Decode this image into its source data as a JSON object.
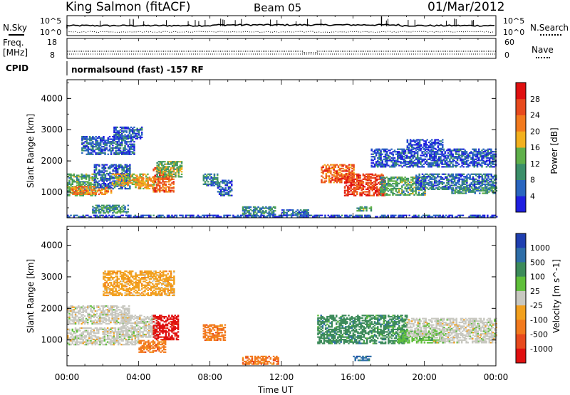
{
  "header": {
    "station": "King Salmon (fitACF)",
    "beam": "Beam 05",
    "date": "01/Mar/2012"
  },
  "strip_panels": {
    "nsky": {
      "label": "N.Sky",
      "ticks": [
        "10^5",
        "10^0"
      ]
    },
    "nsearch": {
      "label": "N.Search",
      "ticks": [
        "10^5",
        "10^0"
      ]
    },
    "freq": {
      "label_line1": "Freq.",
      "label_line2": "[MHz]",
      "ticks": [
        "18",
        "8"
      ]
    },
    "nave": {
      "label": "Nave",
      "ticks": [
        "60",
        "0"
      ]
    },
    "cpid": {
      "label": "CPID",
      "value": "normalsound (fast) -157 RF"
    }
  },
  "chart_data": [
    {
      "type": "heatmap",
      "name": "power-panel",
      "xlabel": "",
      "ylabel": "Slant Range [km]",
      "y_ticks": [
        "1000",
        "2000",
        "3000",
        "4000"
      ],
      "ylim": [
        180,
        4600
      ],
      "xlim": [
        0,
        24
      ],
      "colorbar": {
        "label": "Power [dB]",
        "ticks": [
          "4",
          "8",
          "12",
          "16",
          "20",
          "24",
          "28"
        ],
        "colors": [
          "#1f1fe0",
          "#2a66c0",
          "#3b8f6a",
          "#5fb04a",
          "#f2b01e",
          "#f27a1e",
          "#e84a1e",
          "#e01010"
        ],
        "range": [
          0,
          32
        ]
      },
      "regions": [
        {
          "t": [
            0.0,
            1.6
          ],
          "r": [
            900,
            1600
          ],
          "v": 12
        },
        {
          "t": [
            0.2,
            2.5
          ],
          "r": [
            950,
            1200
          ],
          "v": 22
        },
        {
          "t": [
            1.5,
            3.5
          ],
          "r": [
            1100,
            1900
          ],
          "v": 6
        },
        {
          "t": [
            2.5,
            4.5
          ],
          "r": [
            1200,
            1600
          ],
          "v": 17
        },
        {
          "t": [
            3.8,
            5.0
          ],
          "r": [
            1100,
            1500
          ],
          "v": 19
        },
        {
          "t": [
            4.8,
            6.0
          ],
          "r": [
            1000,
            1800
          ],
          "v": 24
        },
        {
          "t": [
            5.0,
            6.4
          ],
          "r": [
            1500,
            2000
          ],
          "v": 13
        },
        {
          "t": [
            0.8,
            3.8
          ],
          "r": [
            2200,
            2800
          ],
          "v": 6
        },
        {
          "t": [
            2.6,
            4.2
          ],
          "r": [
            2700,
            3100
          ],
          "v": 5
        },
        {
          "t": [
            7.6,
            8.4
          ],
          "r": [
            1200,
            1600
          ],
          "v": 8
        },
        {
          "t": [
            8.4,
            9.2
          ],
          "r": [
            900,
            1400
          ],
          "v": 6
        },
        {
          "t": [
            9.8,
            11.6
          ],
          "r": [
            250,
            550
          ],
          "v": 9
        },
        {
          "t": [
            12.0,
            13.5
          ],
          "r": [
            250,
            450
          ],
          "v": 7
        },
        {
          "t": [
            1.4,
            3.4
          ],
          "r": [
            350,
            600
          ],
          "v": 10
        },
        {
          "t": [
            14.2,
            16.0
          ],
          "r": [
            1300,
            1900
          ],
          "v": 24
        },
        {
          "t": [
            15.5,
            17.8
          ],
          "r": [
            900,
            1600
          ],
          "v": 27
        },
        {
          "t": [
            17.5,
            20.0
          ],
          "r": [
            900,
            1500
          ],
          "v": 12
        },
        {
          "t": [
            19.5,
            24.0
          ],
          "r": [
            1100,
            1600
          ],
          "v": 7
        },
        {
          "t": [
            17.0,
            24.0
          ],
          "r": [
            1800,
            2400
          ],
          "v": 5
        },
        {
          "t": [
            19.0,
            21.0
          ],
          "r": [
            2400,
            2700
          ],
          "v": 4
        },
        {
          "t": [
            21.5,
            24.0
          ],
          "r": [
            950,
            1150
          ],
          "v": 11
        },
        {
          "t": [
            16.2,
            17.0
          ],
          "r": [
            400,
            550
          ],
          "v": 12
        },
        {
          "t": [
            0.0,
            24.0
          ],
          "r": [
            200,
            280
          ],
          "v": 4
        }
      ]
    },
    {
      "type": "heatmap",
      "name": "velocity-panel",
      "xlabel": "Time UT",
      "ylabel": "Slant Range [km]",
      "x_ticks": [
        "00:00",
        "04:00",
        "08:00",
        "12:00",
        "16:00",
        "20:00",
        "00:00"
      ],
      "y_ticks": [
        "1000",
        "2000",
        "3000",
        "4000"
      ],
      "ylim": [
        180,
        4600
      ],
      "xlim": [
        0,
        24
      ],
      "colorbar": {
        "label": "Velocity [m s^-1]",
        "ticks": [
          "1000",
          "500",
          "100",
          "25",
          "-25",
          "-100",
          "-500",
          "-1000"
        ],
        "colors": [
          "#1f3fb0",
          "#2e6ea8",
          "#3c8b5a",
          "#5fbf3a",
          "#c8c8c0",
          "#f2a01e",
          "#f27a1e",
          "#e84a1e",
          "#e01010"
        ]
      },
      "regions": [
        {
          "t": [
            0.0,
            4.0
          ],
          "r": [
            850,
            1400
          ],
          "c": 4
        },
        {
          "t": [
            0.0,
            3.5
          ],
          "r": [
            1500,
            2100
          ],
          "c": 4
        },
        {
          "t": [
            3.0,
            5.0
          ],
          "r": [
            1100,
            1800
          ],
          "c": 4
        },
        {
          "t": [
            4.8,
            6.2
          ],
          "r": [
            1000,
            1800
          ],
          "c": 8
        },
        {
          "t": [
            4.0,
            5.5
          ],
          "r": [
            600,
            1000
          ],
          "c": 6
        },
        {
          "t": [
            7.6,
            8.8
          ],
          "r": [
            1000,
            1500
          ],
          "c": 6
        },
        {
          "t": [
            9.8,
            11.8
          ],
          "r": [
            250,
            500
          ],
          "c": 6
        },
        {
          "t": [
            14.0,
            19.0
          ],
          "r": [
            900,
            1800
          ],
          "c": 2
        },
        {
          "t": [
            18.5,
            21.0
          ],
          "r": [
            900,
            1300
          ],
          "c": 3
        },
        {
          "t": [
            19.0,
            24.0
          ],
          "r": [
            1100,
            1700
          ],
          "c": 4
        },
        {
          "t": [
            20.5,
            24.0
          ],
          "r": [
            900,
            1100
          ],
          "c": 4
        },
        {
          "t": [
            16.0,
            17.0
          ],
          "r": [
            350,
            500
          ],
          "c": 1
        },
        {
          "t": [
            2.0,
            6.0
          ],
          "r": [
            2400,
            3200
          ],
          "c": 5
        }
      ]
    }
  ]
}
